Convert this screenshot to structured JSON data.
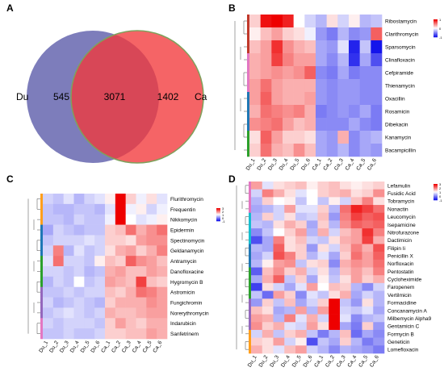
{
  "chart_data": [
    {
      "panel": "A",
      "type": "venn",
      "sets": [
        {
          "name": "Du",
          "color": "#6f6fb4"
        },
        {
          "name": "Ca",
          "color": "#f2393b"
        }
      ],
      "regions": {
        "du_only": 545,
        "both": 3071,
        "ca_only": 1402
      }
    },
    {
      "panel": "B",
      "type": "heatmap",
      "columns": [
        "Du_1",
        "Du_2",
        "Du_3",
        "Du_4",
        "Du_5",
        "Du_6",
        "Ca_1",
        "Ca_2",
        "Ca_3",
        "Ca_4",
        "Ca_5",
        "Ca_6"
      ],
      "rows": [
        {
          "name": "Ribostamycin",
          "values": [
            0.3,
            1.5,
            1.6,
            1.4,
            0.0,
            -0.3,
            -0.5,
            0.2,
            -0.3,
            0.1,
            -0.5,
            -0.4
          ]
        },
        {
          "name": "Clarithromycin",
          "values": [
            0.1,
            0.4,
            0.6,
            0.3,
            0.2,
            -0.1,
            -0.7,
            -0.9,
            -0.5,
            -0.8,
            -0.7,
            1.0
          ]
        },
        {
          "name": "Sparsomycin",
          "values": [
            0.4,
            0.6,
            1.3,
            0.7,
            0.5,
            0.4,
            -0.6,
            -0.7,
            -0.2,
            -1.5,
            -0.4,
            -1.6
          ]
        },
        {
          "name": "Clinafloxacin",
          "values": [
            0.5,
            0.6,
            1.2,
            0.8,
            0.6,
            0.6,
            -0.6,
            -0.8,
            -0.5,
            -1.4,
            -0.6,
            -1.2
          ]
        },
        {
          "name": "Cefpiramide",
          "values": [
            0.5,
            0.6,
            0.7,
            0.6,
            0.7,
            1.0,
            -0.8,
            -0.9,
            -0.6,
            -0.9,
            -0.8,
            -0.8
          ]
        },
        {
          "name": "Thienamycin",
          "values": [
            0.6,
            0.9,
            0.6,
            0.5,
            0.5,
            0.5,
            -0.7,
            -0.8,
            -0.7,
            -0.7,
            -0.8,
            -0.8
          ]
        },
        {
          "name": "Oxacillin",
          "values": [
            0.6,
            1.0,
            0.6,
            0.5,
            0.5,
            0.6,
            -0.7,
            -0.8,
            -0.7,
            -0.7,
            -0.8,
            -0.8
          ]
        },
        {
          "name": "Rosamicin",
          "values": [
            0.5,
            0.9,
            0.8,
            0.7,
            0.8,
            0.5,
            -0.9,
            -0.8,
            -0.7,
            -0.8,
            -0.6,
            -0.9
          ]
        },
        {
          "name": "Dibekacin",
          "values": [
            0.7,
            0.8,
            0.9,
            0.6,
            0.4,
            0.5,
            -0.8,
            -0.8,
            -0.8,
            -0.6,
            -0.8,
            -0.9
          ]
        },
        {
          "name": "Kanamycin",
          "values": [
            0.2,
            1.0,
            0.6,
            0.3,
            0.3,
            0.2,
            -0.6,
            -0.7,
            0.5,
            -0.8,
            -0.6,
            -0.5
          ]
        },
        {
          "name": "Bacampicillin",
          "values": [
            0.3,
            0.9,
            0.5,
            0.4,
            0.7,
            0.4,
            -0.6,
            -0.7,
            -0.5,
            -0.8,
            -0.6,
            -0.7
          ]
        }
      ],
      "legend": [
        "1",
        "0",
        "-1"
      ],
      "annotation_colors": [
        "#c0392b",
        "#e377c2",
        "#1f77b4",
        "#2ca02c"
      ]
    },
    {
      "panel": "C",
      "type": "heatmap",
      "columns": [
        "Du_1",
        "Du_2",
        "Du_3",
        "Du_4",
        "Du_5",
        "Du_6",
        "Ca_1",
        "Ca_2",
        "Ca_3",
        "Ca_4",
        "Ca_5",
        "Ca_6"
      ],
      "rows": [
        {
          "name": "Flurithromycin",
          "values": [
            -0.3,
            -0.4,
            -0.2,
            -0.5,
            -0.3,
            -0.2,
            0.1,
            2.5,
            0.3,
            -0.1,
            0.2,
            -0.2
          ]
        },
        {
          "name": "Frequentin",
          "values": [
            -0.4,
            -0.5,
            -0.5,
            -0.4,
            -0.4,
            -0.5,
            -0.2,
            2.6,
            -0.1,
            0.1,
            -0.3,
            -0.1
          ]
        },
        {
          "name": "Nikkomycin",
          "values": [
            -0.4,
            -0.4,
            -0.5,
            -0.3,
            -0.4,
            -0.4,
            -0.1,
            2.4,
            0.0,
            -0.2,
            -0.1,
            0.1
          ]
        },
        {
          "name": "Epidermin",
          "values": [
            -0.6,
            -0.3,
            -0.4,
            -0.5,
            -0.4,
            -0.4,
            0.3,
            0.4,
            0.9,
            0.5,
            0.7,
            0.9
          ]
        },
        {
          "name": "Spectinomycin",
          "values": [
            -0.4,
            -0.3,
            -0.3,
            -0.3,
            -0.2,
            -0.3,
            0.3,
            0.3,
            0.2,
            0.6,
            0.7,
            0.7
          ]
        },
        {
          "name": "Geldanamycin",
          "values": [
            -0.3,
            0.8,
            -0.5,
            -0.2,
            -0.4,
            -0.3,
            0.2,
            0.5,
            0.6,
            0.3,
            0.5,
            0.8
          ]
        },
        {
          "name": "Antramycin",
          "values": [
            -0.2,
            0.9,
            -0.3,
            -0.3,
            -0.4,
            0.1,
            0.4,
            0.3,
            1.0,
            0.7,
            0.6,
            0.4
          ]
        },
        {
          "name": "Danofloxacine",
          "values": [
            -0.3,
            -0.3,
            -0.4,
            -0.3,
            -0.5,
            -0.4,
            0.5,
            0.6,
            0.4,
            0.4,
            0.6,
            0.5
          ]
        },
        {
          "name": "Hygromycin B",
          "values": [
            -0.5,
            -0.3,
            -0.4,
            0.0,
            -0.4,
            -0.3,
            0.6,
            0.5,
            0.4,
            1.2,
            0.4,
            0.3
          ]
        },
        {
          "name": "Astromicin",
          "values": [
            -0.4,
            -0.4,
            -0.3,
            -0.4,
            -0.3,
            -0.3,
            0.4,
            0.3,
            0.5,
            0.9,
            0.8,
            0.6
          ]
        },
        {
          "name": "Fungichromin",
          "values": [
            -0.3,
            -0.5,
            -0.4,
            -0.3,
            -0.4,
            -0.5,
            0.3,
            0.5,
            0.5,
            0.5,
            0.7,
            0.6
          ]
        },
        {
          "name": "Norerythromycin",
          "values": [
            -0.4,
            -0.3,
            -0.2,
            -0.3,
            -0.4,
            -0.3,
            0.5,
            0.4,
            0.4,
            0.5,
            0.6,
            0.6
          ]
        },
        {
          "name": "Indarubicin",
          "values": [
            -0.3,
            -0.4,
            -0.3,
            -0.3,
            -0.3,
            -0.4,
            0.3,
            0.6,
            0.4,
            0.3,
            0.5,
            0.5
          ]
        },
        {
          "name": "Sanfetrinem",
          "values": [
            -0.4,
            -0.4,
            -0.3,
            -0.4,
            -0.4,
            -0.3,
            0.3,
            0.3,
            0.4,
            0.4,
            0.6,
            0.5
          ]
        }
      ],
      "legend": [
        "3",
        "2",
        "1",
        "0",
        "-1"
      ],
      "annotation_colors": [
        "#ff9f1c",
        "#1f77b4",
        "#2ca02c",
        "#9467bd",
        "#e377c2"
      ]
    },
    {
      "panel": "D",
      "type": "heatmap",
      "columns": [
        "Du_1",
        "Du_2",
        "Du_3",
        "Du_4",
        "Du_5",
        "Du_6",
        "Ca_1",
        "Ca_2",
        "Ca_3",
        "Ca_4",
        "Ca_5",
        "Ca_6"
      ],
      "rows": [
        {
          "name": "Lefamulin",
          "values": [
            0.6,
            -0.2,
            0.2,
            0.3,
            0.4,
            0.1,
            0.3,
            0.4,
            0.2,
            0.1,
            0.2,
            0.3
          ]
        },
        {
          "name": "Fusidic Acid",
          "values": [
            -0.3,
            0.8,
            0.5,
            0.2,
            -0.2,
            0.0,
            0.3,
            0.4,
            0.5,
            0.2,
            0.3,
            0.7
          ]
        },
        {
          "name": "Tobramycin",
          "values": [
            -0.5,
            0.3,
            0.0,
            0.1,
            -0.4,
            0.0,
            -0.4,
            0.1,
            -0.3,
            0.4,
            0.8,
            0.2
          ]
        },
        {
          "name": "Nonactin",
          "values": [
            -0.6,
            -0.5,
            -0.3,
            0.6,
            -0.2,
            -0.2,
            0.3,
            -0.5,
            0.9,
            1.4,
            1.2,
            0.9
          ]
        },
        {
          "name": "Leucomycin",
          "values": [
            -0.5,
            0.3,
            -0.3,
            0.2,
            -0.4,
            -0.3,
            0.4,
            -0.7,
            0.8,
            1.2,
            1.0,
            1.1
          ]
        },
        {
          "name": "Isepamicine",
          "values": [
            -0.4,
            -0.5,
            0.2,
            0.5,
            0.3,
            -0.6,
            0.3,
            -0.5,
            0.7,
            1.0,
            0.9,
            1.0
          ]
        },
        {
          "name": "Nitrofurazone",
          "values": [
            -0.8,
            -0.4,
            0.0,
            0.3,
            0.6,
            -0.5,
            0.5,
            -0.3,
            0.4,
            0.6,
            1.3,
            0.8
          ]
        },
        {
          "name": "Dactimicin",
          "values": [
            -1.2,
            -0.6,
            0.8,
            0.2,
            0.4,
            -0.3,
            -0.4,
            0.2,
            0.5,
            0.6,
            1.2,
            0.5
          ]
        },
        {
          "name": "Filipin Ii",
          "values": [
            -0.5,
            -0.6,
            1.0,
            0.2,
            0.3,
            -0.7,
            0.2,
            -0.3,
            0.4,
            0.8,
            0.5,
            1.1
          ]
        },
        {
          "name": "Penicillin X",
          "values": [
            -0.6,
            -0.3,
            1.1,
            0.8,
            0.3,
            -0.5,
            -0.2,
            -0.6,
            0.3,
            0.9,
            0.6,
            1.0
          ]
        },
        {
          "name": "Norfloxacin",
          "values": [
            -0.5,
            0.1,
            0.6,
            0.7,
            -0.4,
            0.2,
            0.3,
            -0.8,
            0.5,
            0.7,
            0.6,
            0.9
          ]
        },
        {
          "name": "Pentostatin",
          "values": [
            -1.1,
            0.4,
            0.7,
            0.3,
            0.5,
            -0.3,
            0.2,
            -0.5,
            0.4,
            0.6,
            0.4,
            0.8
          ]
        },
        {
          "name": "Cycloheximide",
          "values": [
            -0.6,
            0.5,
            1.0,
            -0.4,
            0.3,
            -0.6,
            0.1,
            -0.4,
            0.2,
            0.6,
            0.3,
            0.5
          ]
        },
        {
          "name": "Faropenem",
          "values": [
            -1.3,
            0.2,
            -0.3,
            -0.6,
            -0.2,
            0.6,
            0.0,
            0.4,
            0.3,
            -0.5,
            -0.8,
            -0.3
          ]
        },
        {
          "name": "Vertilmicin",
          "values": [
            -0.4,
            -1.0,
            0.6,
            0.3,
            -0.8,
            -0.2,
            -0.4,
            0.2,
            0.5,
            -0.6,
            -0.3,
            -0.5
          ]
        },
        {
          "name": "Formacidine",
          "values": [
            -0.7,
            0.3,
            -0.4,
            0.4,
            -0.6,
            -0.3,
            0.3,
            1.8,
            -0.4,
            -0.7,
            0.2,
            -0.5
          ]
        },
        {
          "name": "Concanamycin A",
          "values": [
            0.4,
            0.2,
            -0.6,
            -0.5,
            0.6,
            -0.5,
            0.6,
            2.0,
            -0.3,
            -0.4,
            -0.2,
            -0.6
          ]
        },
        {
          "name": "Milbemycin Alpha9",
          "values": [
            0.6,
            0.5,
            -0.5,
            0.8,
            -0.2,
            0.5,
            -0.3,
            1.9,
            -0.2,
            -0.8,
            -0.5,
            -0.4
          ]
        },
        {
          "name": "Gentamicin C",
          "values": [
            0.7,
            0.3,
            0.5,
            -0.2,
            -0.3,
            0.6,
            0.2,
            1.6,
            -0.6,
            -0.9,
            0.3,
            -0.7
          ]
        },
        {
          "name": "Formycin B",
          "values": [
            -0.3,
            0.5,
            -0.4,
            0.3,
            0.5,
            -0.4,
            -0.9,
            -0.5,
            0.4,
            -1.0,
            -0.6,
            -0.8
          ]
        },
        {
          "name": "Geneticin",
          "values": [
            0.3,
            0.2,
            0.6,
            -0.3,
            0.1,
            -1.2,
            -0.4,
            -0.6,
            0.3,
            -0.5,
            -0.9,
            -0.7
          ]
        },
        {
          "name": "Lomefloxacin",
          "values": [
            0.5,
            0.2,
            -0.2,
            0.4,
            0.6,
            -0.3,
            -0.5,
            -0.8,
            -0.5,
            -0.6,
            -0.7,
            -0.9
          ]
        }
      ],
      "legend": [
        "3",
        "2",
        "1",
        "0",
        "-1"
      ],
      "annotation_colors": [
        "#e377c2",
        "#17becf",
        "#1f77b4",
        "#2ca02c",
        "#9467bd",
        "#ff9f1c"
      ]
    }
  ],
  "labels": {
    "panel_a": "A",
    "panel_b": "B",
    "panel_c": "C",
    "panel_d": "D"
  }
}
